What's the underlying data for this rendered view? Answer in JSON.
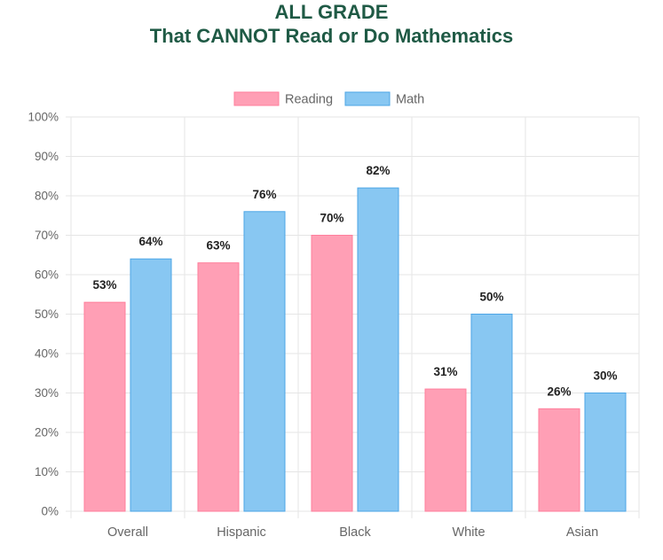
{
  "chart_data": {
    "type": "bar",
    "title": [
      "ALL GRADE",
      "That CANNOT Read or Do Mathematics"
    ],
    "categories": [
      "Overall",
      "Hispanic",
      "Black",
      "White",
      "Asian"
    ],
    "series": [
      {
        "name": "Reading",
        "values": [
          53,
          63,
          70,
          31,
          26
        ]
      },
      {
        "name": "Math",
        "values": [
          64,
          76,
          82,
          50,
          30
        ]
      }
    ],
    "value_labels": {
      "Reading": [
        "53%",
        "63%",
        "70%",
        "31%",
        "26%"
      ],
      "Math": [
        "64%",
        "76%",
        "82%",
        "50%",
        "30%"
      ]
    },
    "y_ticks": [
      "0%",
      "10%",
      "20%",
      "30%",
      "40%",
      "50%",
      "60%",
      "70%",
      "80%",
      "90%",
      "100%"
    ],
    "ylim": [
      0,
      100
    ],
    "xlabel": "",
    "ylabel": "",
    "grid": true,
    "legend_position": "top-center",
    "colors": {
      "Reading": {
        "fill": "#ff9fb5",
        "stroke": "#ff7f9c"
      },
      "Math": {
        "fill": "#88c7f2",
        "stroke": "#4da6e6"
      },
      "title": "#1f5a45",
      "grid": "#e5e5e5",
      "axis_text": "#666666",
      "value_label": "#222222"
    }
  }
}
